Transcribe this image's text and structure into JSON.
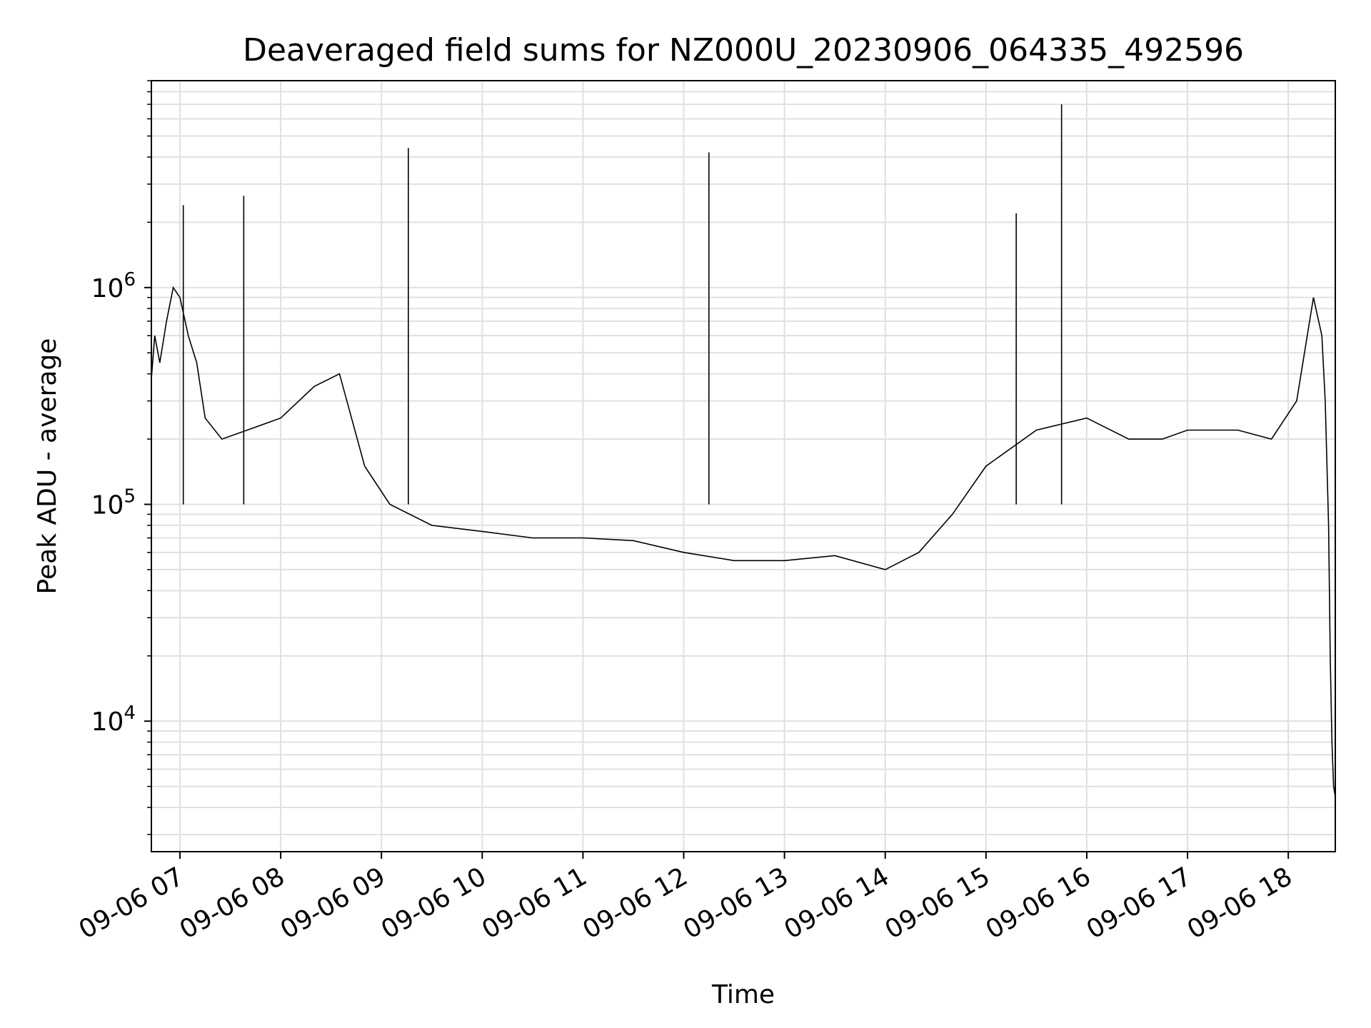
{
  "chart_data": {
    "type": "line",
    "title": "Deaveraged field sums for NZ000U_20230906_064335_492596",
    "xlabel": "Time",
    "ylabel": "Peak ADU - average",
    "yscale": "log",
    "ylim": [
      2500,
      9000000
    ],
    "xlim": [
      "2023-09-06 06:43",
      "2023-09-06 18:28"
    ],
    "grid": true,
    "line_color": "#000000",
    "grid_color": "#e0e0e0",
    "x_ticks": [
      {
        "t": "2023-09-06 07:00",
        "label": "09-06 07"
      },
      {
        "t": "2023-09-06 08:00",
        "label": "09-06 08"
      },
      {
        "t": "2023-09-06 09:00",
        "label": "09-06 09"
      },
      {
        "t": "2023-09-06 10:00",
        "label": "09-06 10"
      },
      {
        "t": "2023-09-06 11:00",
        "label": "09-06 11"
      },
      {
        "t": "2023-09-06 12:00",
        "label": "09-06 12"
      },
      {
        "t": "2023-09-06 13:00",
        "label": "09-06 13"
      },
      {
        "t": "2023-09-06 14:00",
        "label": "09-06 14"
      },
      {
        "t": "2023-09-06 15:00",
        "label": "09-06 15"
      },
      {
        "t": "2023-09-06 16:00",
        "label": "09-06 16"
      },
      {
        "t": "2023-09-06 17:00",
        "label": "09-06 17"
      },
      {
        "t": "2023-09-06 18:00",
        "label": "09-06 18"
      }
    ],
    "y_ticks": [
      {
        "value": 10000,
        "base": "10",
        "exp": "4"
      },
      {
        "value": 100000,
        "base": "10",
        "exp": "5"
      },
      {
        "value": 1000000,
        "base": "10",
        "exp": "6"
      }
    ],
    "series": [
      {
        "points": [
          [
            "2023-09-06 06:43",
            380000
          ],
          [
            "2023-09-06 06:45",
            600000
          ],
          [
            "2023-09-06 06:48",
            450000
          ],
          [
            "2023-09-06 06:52",
            700000
          ],
          [
            "2023-09-06 06:56",
            1000000
          ],
          [
            "2023-09-06 07:00",
            900000
          ],
          [
            "2023-09-06 07:05",
            600000
          ],
          [
            "2023-09-06 07:10",
            450000
          ],
          [
            "2023-09-06 07:15",
            250000
          ],
          [
            "2023-09-06 07:25",
            200000
          ],
          [
            "2023-09-06 07:40",
            220000
          ],
          [
            "2023-09-06 08:00",
            250000
          ],
          [
            "2023-09-06 08:20",
            350000
          ],
          [
            "2023-09-06 08:35",
            400000
          ],
          [
            "2023-09-06 08:50",
            150000
          ],
          [
            "2023-09-06 09:05",
            100000
          ],
          [
            "2023-09-06 09:30",
            80000
          ],
          [
            "2023-09-06 10:00",
            75000
          ],
          [
            "2023-09-06 10:30",
            70000
          ],
          [
            "2023-09-06 11:00",
            70000
          ],
          [
            "2023-09-06 11:30",
            68000
          ],
          [
            "2023-09-06 12:00",
            60000
          ],
          [
            "2023-09-06 12:30",
            55000
          ],
          [
            "2023-09-06 13:00",
            55000
          ],
          [
            "2023-09-06 13:30",
            58000
          ],
          [
            "2023-09-06 14:00",
            50000
          ],
          [
            "2023-09-06 14:20",
            60000
          ],
          [
            "2023-09-06 14:40",
            90000
          ],
          [
            "2023-09-06 15:00",
            150000
          ],
          [
            "2023-09-06 15:30",
            220000
          ],
          [
            "2023-09-06 16:00",
            250000
          ],
          [
            "2023-09-06 16:25",
            200000
          ],
          [
            "2023-09-06 16:45",
            200000
          ],
          [
            "2023-09-06 17:00",
            220000
          ],
          [
            "2023-09-06 17:30",
            220000
          ],
          [
            "2023-09-06 17:50",
            200000
          ],
          [
            "2023-09-06 18:05",
            300000
          ],
          [
            "2023-09-06 18:15",
            900000
          ],
          [
            "2023-09-06 18:20",
            600000
          ],
          [
            "2023-09-06 18:22",
            300000
          ],
          [
            "2023-09-06 18:24",
            80000
          ],
          [
            "2023-09-06 18:25",
            20000
          ],
          [
            "2023-09-06 18:26",
            8000
          ],
          [
            "2023-09-06 18:27",
            5000
          ],
          [
            "2023-09-06 18:28",
            4500
          ]
        ],
        "spikes": [
          [
            "2023-09-06 07:02",
            2400000
          ],
          [
            "2023-09-06 07:38",
            2650000
          ],
          [
            "2023-09-06 09:16",
            4400000
          ],
          [
            "2023-09-06 12:15",
            4200000
          ],
          [
            "2023-09-06 15:18",
            2200000
          ],
          [
            "2023-09-06 15:45",
            7000000
          ]
        ]
      }
    ]
  }
}
